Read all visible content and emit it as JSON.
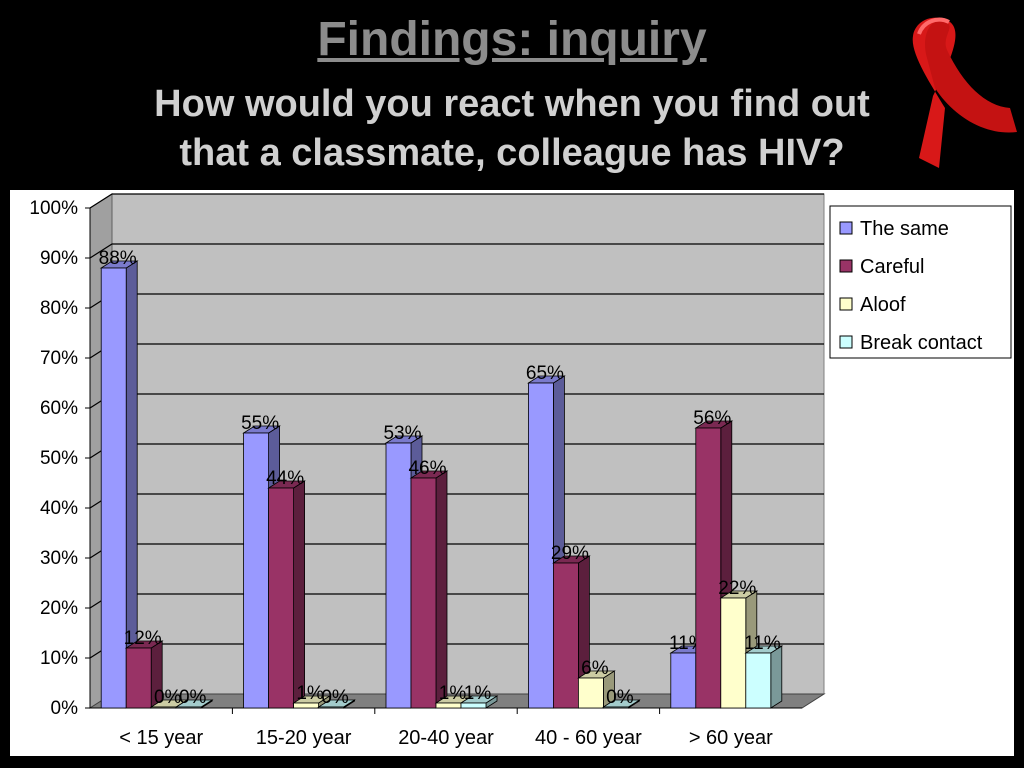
{
  "slide": {
    "title": "Findings: inquiry",
    "subtitle_line1": "How would you react when you find out",
    "subtitle_line2": "that a classmate, colleague has HIV?"
  },
  "icons": {
    "ribbon": "red-awareness-ribbon-icon"
  },
  "colors": {
    "background": "#000000",
    "plot_wall": "#c0c0c0",
    "the_same": "#9999ff",
    "careful": "#993366",
    "aloof": "#ffffcc",
    "break_contact": "#ccffff",
    "ribbon": "#d81818"
  },
  "chart_data": {
    "type": "bar",
    "style": "3d-clustered-column",
    "title": "",
    "xlabel": "",
    "ylabel": "",
    "ylim": [
      0,
      100
    ],
    "yticks": [
      "0%",
      "10%",
      "20%",
      "30%",
      "40%",
      "50%",
      "60%",
      "70%",
      "80%",
      "90%",
      "100%"
    ],
    "grid": true,
    "legend_position": "right",
    "categories": [
      "< 15 year",
      "15-20 year",
      "20-40 year",
      "40 - 60 year",
      "> 60 year"
    ],
    "series": [
      {
        "name": "The same",
        "color": "#9999ff",
        "values": [
          88,
          55,
          53,
          65,
          11
        ],
        "labels": [
          "88%",
          "55%",
          "53%",
          "65%",
          "11%"
        ]
      },
      {
        "name": "Careful",
        "color": "#993366",
        "values": [
          12,
          44,
          46,
          29,
          56
        ],
        "labels": [
          "12%",
          "44%",
          "46%",
          "29%",
          "56%"
        ]
      },
      {
        "name": "Aloof",
        "color": "#ffffcc",
        "values": [
          0,
          1,
          1,
          6,
          22
        ],
        "labels": [
          "0%",
          "1%",
          "1%",
          "6%",
          "22%"
        ]
      },
      {
        "name": "Break contact",
        "color": "#ccffff",
        "values": [
          0,
          0,
          1,
          0,
          11
        ],
        "labels": [
          "0%",
          "0%",
          "1%",
          "0%",
          "11%"
        ]
      }
    ]
  }
}
